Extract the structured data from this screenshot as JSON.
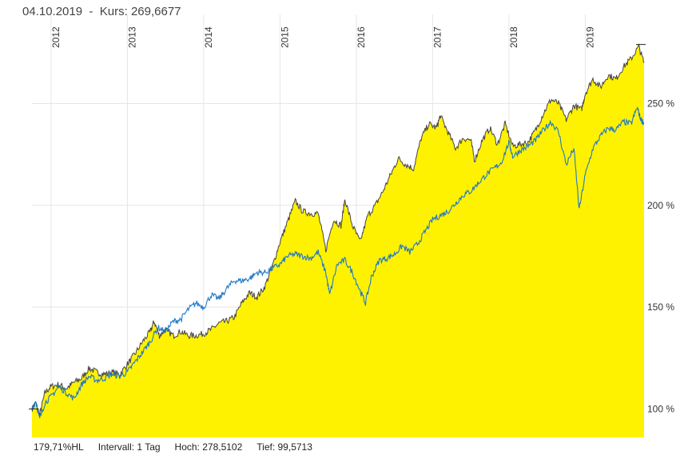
{
  "header": {
    "date": "04.10.2019",
    "separator": "  -  ",
    "price_label": "Kurs:",
    "price": "269,6677"
  },
  "footer": {
    "performance": "179,71%HL",
    "interval": "Intervall: 1 Tag",
    "high": "Hoch: 278,5102",
    "low": "Tief: 99,5713"
  },
  "colors": {
    "area_fill": "#fff200",
    "area_line": "#444444",
    "benchmark_line": "#1f78c8",
    "grid": "#e6e6e6"
  },
  "chart_data": {
    "type": "area",
    "x_ticks": [
      "2012",
      "2013",
      "2014",
      "2015",
      "2016",
      "2017",
      "2018",
      "2019"
    ],
    "y_ticks": [
      "100 %",
      "150 %",
      "200 %",
      "250 %"
    ],
    "y_tick_values": [
      100,
      150,
      200,
      250
    ],
    "ylim": [
      86,
      282
    ],
    "xlim": [
      2011.75,
      2019.77
    ],
    "grid": true,
    "series": [
      {
        "role": "primary-area",
        "points": [
          [
            2011.75,
            100
          ],
          [
            2011.8,
            103
          ],
          [
            2011.85,
            97
          ],
          [
            2011.92,
            108
          ],
          [
            2012.0,
            111
          ],
          [
            2012.1,
            112
          ],
          [
            2012.2,
            110
          ],
          [
            2012.3,
            113
          ],
          [
            2012.4,
            115
          ],
          [
            2012.5,
            120
          ],
          [
            2012.6,
            118
          ],
          [
            2012.7,
            117
          ],
          [
            2012.8,
            118
          ],
          [
            2012.9,
            117
          ],
          [
            2013.0,
            122
          ],
          [
            2013.1,
            127
          ],
          [
            2013.2,
            133
          ],
          [
            2013.3,
            138
          ],
          [
            2013.35,
            143
          ],
          [
            2013.42,
            136
          ],
          [
            2013.5,
            139
          ],
          [
            2013.6,
            136
          ],
          [
            2013.7,
            138
          ],
          [
            2013.8,
            136
          ],
          [
            2013.9,
            136
          ],
          [
            2014.0,
            137
          ],
          [
            2014.1,
            139
          ],
          [
            2014.2,
            142
          ],
          [
            2014.3,
            143
          ],
          [
            2014.4,
            145
          ],
          [
            2014.5,
            152
          ],
          [
            2014.6,
            157
          ],
          [
            2014.7,
            155
          ],
          [
            2014.8,
            160
          ],
          [
            2014.9,
            170
          ],
          [
            2015.0,
            182
          ],
          [
            2015.1,
            192
          ],
          [
            2015.2,
            202
          ],
          [
            2015.3,
            197
          ],
          [
            2015.4,
            196
          ],
          [
            2015.5,
            196
          ],
          [
            2015.6,
            178
          ],
          [
            2015.7,
            193
          ],
          [
            2015.8,
            190
          ],
          [
            2015.85,
            203
          ],
          [
            2015.95,
            190
          ],
          [
            2016.05,
            182
          ],
          [
            2016.15,
            195
          ],
          [
            2016.25,
            200
          ],
          [
            2016.35,
            207
          ],
          [
            2016.45,
            215
          ],
          [
            2016.55,
            223
          ],
          [
            2016.65,
            220
          ],
          [
            2016.75,
            218
          ],
          [
            2016.85,
            233
          ],
          [
            2016.95,
            240
          ],
          [
            2017.05,
            238
          ],
          [
            2017.1,
            244
          ],
          [
            2017.2,
            236
          ],
          [
            2017.3,
            228
          ],
          [
            2017.4,
            233
          ],
          [
            2017.5,
            232
          ],
          [
            2017.55,
            222
          ],
          [
            2017.65,
            232
          ],
          [
            2017.75,
            238
          ],
          [
            2017.85,
            230
          ],
          [
            2017.95,
            240
          ],
          [
            2018.05,
            229
          ],
          [
            2018.15,
            230
          ],
          [
            2018.25,
            231
          ],
          [
            2018.35,
            237
          ],
          [
            2018.45,
            245
          ],
          [
            2018.55,
            252
          ],
          [
            2018.65,
            250
          ],
          [
            2018.75,
            242
          ],
          [
            2018.85,
            249
          ],
          [
            2018.95,
            247
          ],
          [
            2019.0,
            255
          ],
          [
            2019.1,
            262
          ],
          [
            2019.2,
            258
          ],
          [
            2019.3,
            264
          ],
          [
            2019.4,
            262
          ],
          [
            2019.5,
            268
          ],
          [
            2019.6,
            272
          ],
          [
            2019.7,
            278
          ],
          [
            2019.77,
            270
          ]
        ]
      },
      {
        "role": "benchmark-line",
        "points": [
          [
            2011.75,
            100
          ],
          [
            2011.8,
            104
          ],
          [
            2011.85,
            95
          ],
          [
            2011.92,
            103
          ],
          [
            2012.0,
            106
          ],
          [
            2012.1,
            111
          ],
          [
            2012.2,
            108
          ],
          [
            2012.3,
            105
          ],
          [
            2012.4,
            112
          ],
          [
            2012.5,
            116
          ],
          [
            2012.6,
            114
          ],
          [
            2012.7,
            115
          ],
          [
            2012.8,
            117
          ],
          [
            2012.9,
            116
          ],
          [
            2013.0,
            118
          ],
          [
            2013.1,
            123
          ],
          [
            2013.2,
            128
          ],
          [
            2013.3,
            133
          ],
          [
            2013.4,
            140
          ],
          [
            2013.5,
            138
          ],
          [
            2013.6,
            143
          ],
          [
            2013.7,
            144
          ],
          [
            2013.8,
            149
          ],
          [
            2013.9,
            152
          ],
          [
            2014.0,
            150
          ],
          [
            2014.1,
            156
          ],
          [
            2014.2,
            154
          ],
          [
            2014.3,
            159
          ],
          [
            2014.4,
            163
          ],
          [
            2014.5,
            163
          ],
          [
            2014.6,
            164
          ],
          [
            2014.7,
            167
          ],
          [
            2014.8,
            167
          ],
          [
            2014.9,
            169
          ],
          [
            2015.0,
            171
          ],
          [
            2015.1,
            175
          ],
          [
            2015.2,
            176
          ],
          [
            2015.3,
            175
          ],
          [
            2015.4,
            174
          ],
          [
            2015.5,
            177
          ],
          [
            2015.6,
            167
          ],
          [
            2015.65,
            156
          ],
          [
            2015.75,
            171
          ],
          [
            2015.85,
            173
          ],
          [
            2015.95,
            167
          ],
          [
            2016.05,
            158
          ],
          [
            2016.12,
            152
          ],
          [
            2016.2,
            165
          ],
          [
            2016.3,
            173
          ],
          [
            2016.4,
            174
          ],
          [
            2016.5,
            176
          ],
          [
            2016.6,
            180
          ],
          [
            2016.7,
            177
          ],
          [
            2016.8,
            181
          ],
          [
            2016.9,
            187
          ],
          [
            2017.0,
            193
          ],
          [
            2017.1,
            195
          ],
          [
            2017.2,
            197
          ],
          [
            2017.3,
            201
          ],
          [
            2017.4,
            205
          ],
          [
            2017.5,
            207
          ],
          [
            2017.6,
            211
          ],
          [
            2017.7,
            215
          ],
          [
            2017.8,
            218
          ],
          [
            2017.9,
            221
          ],
          [
            2018.0,
            231
          ],
          [
            2018.05,
            224
          ],
          [
            2018.15,
            227
          ],
          [
            2018.25,
            229
          ],
          [
            2018.35,
            232
          ],
          [
            2018.45,
            237
          ],
          [
            2018.55,
            241
          ],
          [
            2018.65,
            236
          ],
          [
            2018.75,
            220
          ],
          [
            2018.85,
            228
          ],
          [
            2018.92,
            198
          ],
          [
            2019.0,
            215
          ],
          [
            2019.1,
            228
          ],
          [
            2019.2,
            234
          ],
          [
            2019.3,
            238
          ],
          [
            2019.4,
            237
          ],
          [
            2019.5,
            241
          ],
          [
            2019.6,
            240
          ],
          [
            2019.68,
            248
          ],
          [
            2019.72,
            243
          ],
          [
            2019.77,
            240
          ]
        ]
      }
    ]
  }
}
